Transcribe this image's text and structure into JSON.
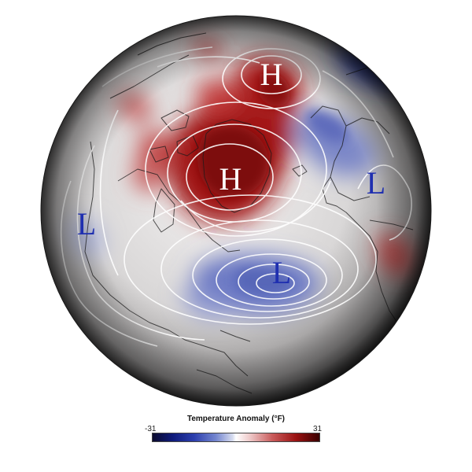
{
  "map": {
    "pressure_centers": [
      {
        "label": "H",
        "color": "#ffffff"
      },
      {
        "label": "H",
        "color": "#ffffff"
      },
      {
        "label": "L",
        "color": "#1f2fb0"
      },
      {
        "label": "L",
        "color": "#1f2fb0"
      },
      {
        "label": "L",
        "color": "#1f2fb0"
      }
    ]
  },
  "legend": {
    "title": "Temperature Anomaly (°F)",
    "min": "-31",
    "max": "31",
    "colors": {
      "cold": "#0e1a7a",
      "neutral": "#ffffff",
      "warm": "#9a1212"
    }
  }
}
